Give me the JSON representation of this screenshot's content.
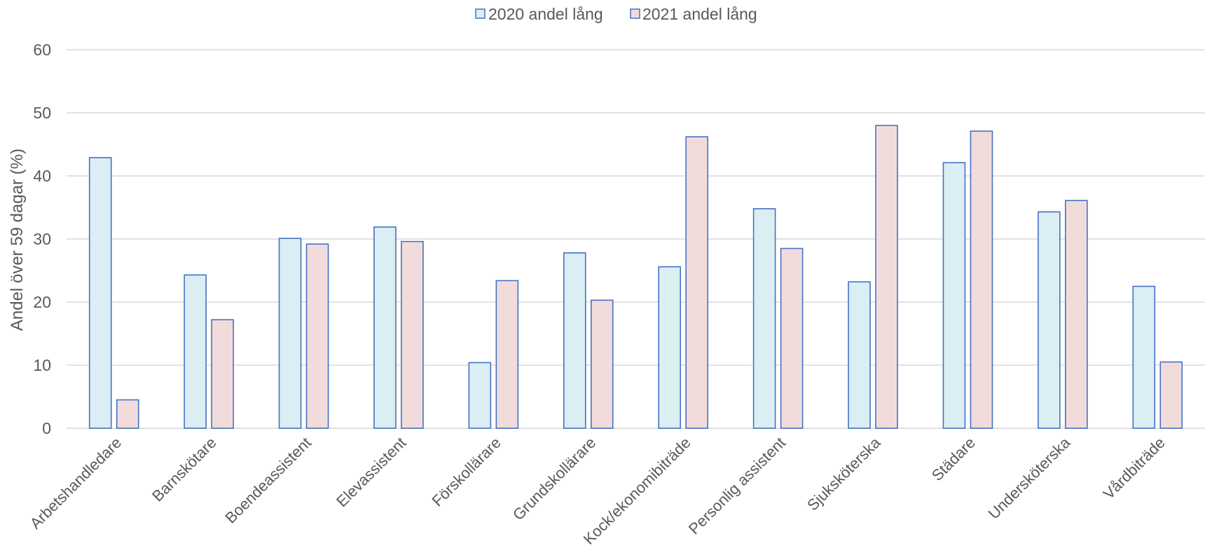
{
  "chart_data": {
    "type": "bar",
    "title": "",
    "xlabel": "",
    "ylabel": "Andel över 59 dagar (%)",
    "ylim": [
      0,
      60
    ],
    "yticks": [
      0,
      10,
      20,
      30,
      40,
      50,
      60
    ],
    "grid": true,
    "legend_position": "top-center",
    "categories": [
      "Arbetshandledare",
      "Barnskötare",
      "Boendeassistent",
      "Elevassistent",
      "Förskollärare",
      "Grundskollärare",
      "Kock/ekonomibiträde",
      "Personlig assistent",
      "Sjuksköterska",
      "Städare",
      "Undersköterska",
      "Vårdbiträde"
    ],
    "series": [
      {
        "name": "2020 andel lång",
        "fill": "#daeef3",
        "stroke": "#4472c4",
        "values": [
          42.9,
          24.3,
          30.1,
          31.9,
          10.4,
          27.8,
          25.6,
          34.8,
          23.2,
          42.1,
          34.3,
          22.5
        ]
      },
      {
        "name": "2021 andel lång",
        "fill": "#f2dcdb",
        "stroke": "#4472c4",
        "values": [
          4.5,
          17.2,
          29.2,
          29.6,
          23.4,
          20.3,
          46.2,
          28.5,
          48.0,
          47.1,
          36.1,
          10.5
        ]
      }
    ]
  }
}
